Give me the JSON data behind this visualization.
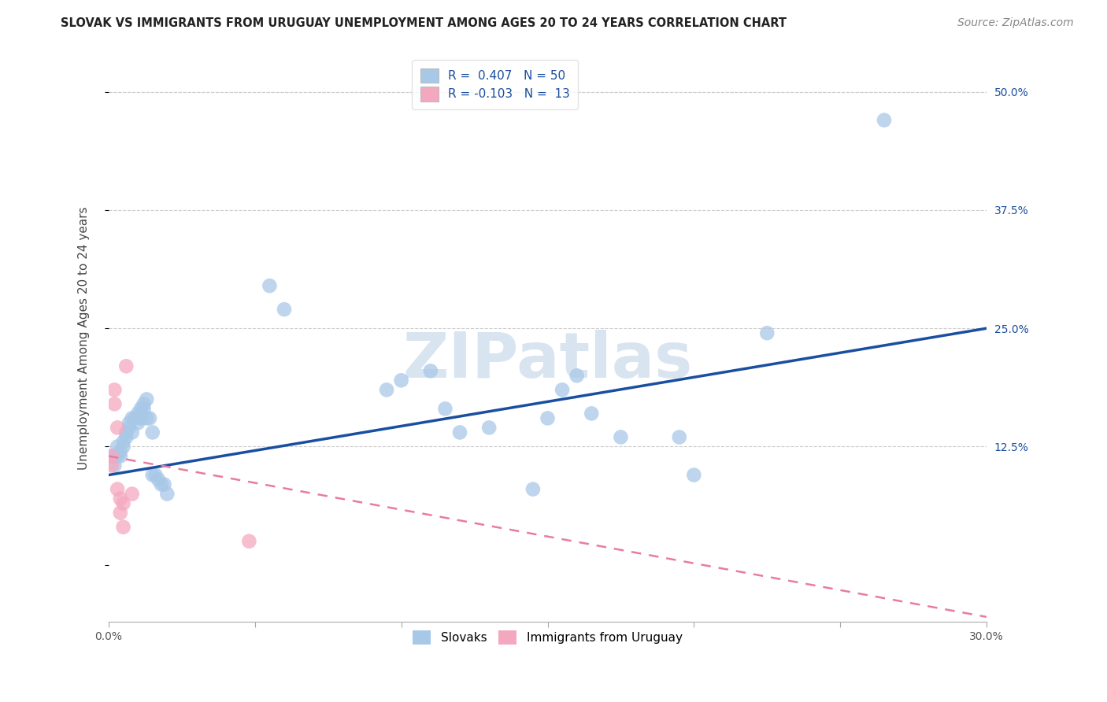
{
  "title": "SLOVAK VS IMMIGRANTS FROM URUGUAY UNEMPLOYMENT AMONG AGES 20 TO 24 YEARS CORRELATION CHART",
  "source": "Source: ZipAtlas.com",
  "ylabel": "Unemployment Among Ages 20 to 24 years",
  "legend1_label": "R =  0.407   N = 50",
  "legend2_label": "R = -0.103   N =  13",
  "legend_series1": "Slovaks",
  "legend_series2": "Immigrants from Uruguay",
  "blue_color": "#a8c8e8",
  "pink_color": "#f4a8c0",
  "line_blue": "#1a4fa0",
  "line_pink": "#e87ca0",
  "watermark": "ZIPatlas",
  "watermark_color": "#d8e4f0",
  "xlim": [
    0.0,
    0.3
  ],
  "ylim": [
    -0.06,
    0.54
  ],
  "xtick_vals": [
    0.0,
    0.05,
    0.1,
    0.15,
    0.2,
    0.25,
    0.3
  ],
  "xtick_labels": [
    "0.0%",
    "",
    "",
    "",
    "",
    "",
    "30.0%"
  ],
  "ytick_right_vals": [
    0.0,
    0.125,
    0.25,
    0.375,
    0.5
  ],
  "ytick_right_labels": [
    "",
    "12.5%",
    "25.0%",
    "37.5%",
    "50.0%"
  ],
  "grid_color": "#cccccc",
  "background_color": "#ffffff",
  "blue_scatter_x": [
    0.001,
    0.002,
    0.002,
    0.003,
    0.003,
    0.004,
    0.004,
    0.005,
    0.005,
    0.006,
    0.006,
    0.007,
    0.007,
    0.008,
    0.008,
    0.009,
    0.01,
    0.01,
    0.011,
    0.011,
    0.012,
    0.012,
    0.013,
    0.013,
    0.014,
    0.015,
    0.015,
    0.016,
    0.017,
    0.018,
    0.019,
    0.02,
    0.055,
    0.06,
    0.095,
    0.1,
    0.11,
    0.115,
    0.12,
    0.13,
    0.145,
    0.15,
    0.155,
    0.16,
    0.165,
    0.175,
    0.195,
    0.2,
    0.225,
    0.265
  ],
  "blue_scatter_y": [
    0.115,
    0.115,
    0.105,
    0.115,
    0.125,
    0.12,
    0.115,
    0.13,
    0.125,
    0.14,
    0.135,
    0.145,
    0.15,
    0.14,
    0.155,
    0.155,
    0.16,
    0.15,
    0.165,
    0.155,
    0.17,
    0.165,
    0.175,
    0.155,
    0.155,
    0.14,
    0.095,
    0.095,
    0.09,
    0.085,
    0.085,
    0.075,
    0.295,
    0.27,
    0.185,
    0.195,
    0.205,
    0.165,
    0.14,
    0.145,
    0.08,
    0.155,
    0.185,
    0.2,
    0.16,
    0.135,
    0.135,
    0.095,
    0.245,
    0.47
  ],
  "pink_scatter_x": [
    0.001,
    0.001,
    0.002,
    0.002,
    0.003,
    0.003,
    0.004,
    0.004,
    0.005,
    0.005,
    0.006,
    0.008,
    0.048
  ],
  "pink_scatter_y": [
    0.115,
    0.105,
    0.185,
    0.17,
    0.145,
    0.08,
    0.07,
    0.055,
    0.065,
    0.04,
    0.21,
    0.075,
    0.025
  ],
  "blue_line_x": [
    0.0,
    0.3
  ],
  "blue_line_y": [
    0.095,
    0.25
  ],
  "pink_line_x": [
    0.0,
    0.3
  ],
  "pink_line_y": [
    0.115,
    -0.055
  ],
  "title_fontsize": 10.5,
  "axis_label_fontsize": 11,
  "tick_fontsize": 10,
  "legend_fontsize": 11,
  "source_fontsize": 10
}
